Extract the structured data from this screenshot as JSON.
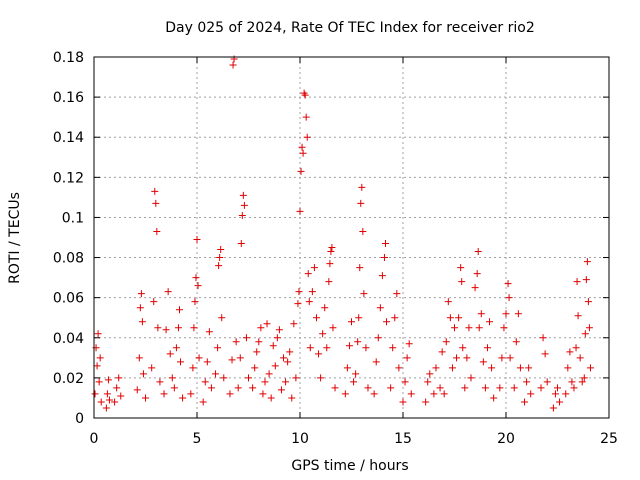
{
  "chart_data": {
    "type": "scatter",
    "title": "Day 025 of 2024, Rate Of TEC Index for receiver rio2",
    "xlabel": "GPS time / hours",
    "ylabel": "ROTI / TECUs",
    "xlim": [
      0,
      25
    ],
    "ylim": [
      0,
      0.18
    ],
    "x_ticks": [
      0,
      5,
      10,
      15,
      20,
      25
    ],
    "x_tick_labels": [
      "0",
      "5",
      "10",
      "15",
      "20",
      "25"
    ],
    "y_ticks": [
      0,
      0.02,
      0.04,
      0.06,
      0.08,
      0.1,
      0.12,
      0.14,
      0.16,
      0.18
    ],
    "y_tick_labels": [
      "0",
      "0.02",
      "0.04",
      "0.06",
      "0.08",
      "0.1",
      "0.12",
      "0.14",
      "0.16",
      "0.18"
    ],
    "grid": true,
    "marker": "+",
    "color": "#e00000",
    "series": [
      {
        "name": "ROTI",
        "points": [
          [
            0.05,
            0.012
          ],
          [
            0.1,
            0.035
          ],
          [
            0.15,
            0.026
          ],
          [
            0.2,
            0.042
          ],
          [
            0.25,
            0.018
          ],
          [
            0.3,
            0.03
          ],
          [
            0.35,
            0.008
          ],
          [
            0.6,
            0.005
          ],
          [
            0.65,
            0.012
          ],
          [
            0.7,
            0.019
          ],
          [
            0.75,
            0.009
          ],
          [
            1.0,
            0.008
          ],
          [
            1.1,
            0.015
          ],
          [
            1.2,
            0.02
          ],
          [
            1.3,
            0.011
          ],
          [
            2.1,
            0.014
          ],
          [
            2.2,
            0.03
          ],
          [
            2.25,
            0.055
          ],
          [
            2.3,
            0.062
          ],
          [
            2.35,
            0.048
          ],
          [
            2.4,
            0.022
          ],
          [
            2.5,
            0.01
          ],
          [
            2.8,
            0.025
          ],
          [
            2.9,
            0.058
          ],
          [
            2.95,
            0.113
          ],
          [
            3.0,
            0.107
          ],
          [
            3.05,
            0.093
          ],
          [
            3.1,
            0.045
          ],
          [
            3.2,
            0.018
          ],
          [
            3.4,
            0.012
          ],
          [
            3.5,
            0.044
          ],
          [
            3.6,
            0.063
          ],
          [
            3.7,
            0.032
          ],
          [
            3.8,
            0.02
          ],
          [
            3.9,
            0.015
          ],
          [
            4.0,
            0.035
          ],
          [
            4.1,
            0.045
          ],
          [
            4.15,
            0.054
          ],
          [
            4.2,
            0.028
          ],
          [
            4.3,
            0.01
          ],
          [
            4.7,
            0.012
          ],
          [
            4.8,
            0.025
          ],
          [
            4.85,
            0.045
          ],
          [
            4.9,
            0.058
          ],
          [
            4.95,
            0.07
          ],
          [
            5.0,
            0.089
          ],
          [
            5.05,
            0.066
          ],
          [
            5.1,
            0.03
          ],
          [
            5.3,
            0.008
          ],
          [
            5.4,
            0.018
          ],
          [
            5.5,
            0.028
          ],
          [
            5.6,
            0.043
          ],
          [
            5.7,
            0.015
          ],
          [
            5.9,
            0.022
          ],
          [
            6.0,
            0.035
          ],
          [
            6.05,
            0.076
          ],
          [
            6.1,
            0.08
          ],
          [
            6.15,
            0.084
          ],
          [
            6.2,
            0.05
          ],
          [
            6.3,
            0.02
          ],
          [
            6.6,
            0.012
          ],
          [
            6.7,
            0.029
          ],
          [
            6.75,
            0.176
          ],
          [
            6.8,
            0.179
          ],
          [
            6.9,
            0.038
          ],
          [
            7.0,
            0.015
          ],
          [
            7.1,
            0.03
          ],
          [
            7.15,
            0.087
          ],
          [
            7.2,
            0.101
          ],
          [
            7.25,
            0.111
          ],
          [
            7.3,
            0.106
          ],
          [
            7.4,
            0.04
          ],
          [
            7.5,
            0.02
          ],
          [
            7.7,
            0.015
          ],
          [
            7.8,
            0.025
          ],
          [
            7.9,
            0.033
          ],
          [
            8.0,
            0.038
          ],
          [
            8.1,
            0.045
          ],
          [
            8.2,
            0.012
          ],
          [
            8.3,
            0.018
          ],
          [
            8.4,
            0.047
          ],
          [
            8.5,
            0.022
          ],
          [
            8.6,
            0.01
          ],
          [
            8.7,
            0.036
          ],
          [
            8.8,
            0.026
          ],
          [
            8.9,
            0.04
          ],
          [
            9.0,
            0.044
          ],
          [
            9.1,
            0.014
          ],
          [
            9.2,
            0.03
          ],
          [
            9.3,
            0.018
          ],
          [
            9.4,
            0.028
          ],
          [
            9.5,
            0.033
          ],
          [
            9.6,
            0.01
          ],
          [
            9.7,
            0.047
          ],
          [
            9.8,
            0.02
          ],
          [
            9.9,
            0.057
          ],
          [
            9.95,
            0.063
          ],
          [
            10.0,
            0.103
          ],
          [
            10.05,
            0.123
          ],
          [
            10.1,
            0.135
          ],
          [
            10.15,
            0.132
          ],
          [
            10.2,
            0.162
          ],
          [
            10.25,
            0.161
          ],
          [
            10.3,
            0.15
          ],
          [
            10.35,
            0.14
          ],
          [
            10.4,
            0.072
          ],
          [
            10.45,
            0.058
          ],
          [
            10.5,
            0.035
          ],
          [
            10.6,
            0.063
          ],
          [
            10.7,
            0.075
          ],
          [
            10.8,
            0.05
          ],
          [
            10.9,
            0.032
          ],
          [
            11.0,
            0.02
          ],
          [
            11.1,
            0.042
          ],
          [
            11.2,
            0.055
          ],
          [
            11.3,
            0.035
          ],
          [
            11.4,
            0.068
          ],
          [
            11.45,
            0.077
          ],
          [
            11.5,
            0.083
          ],
          [
            11.55,
            0.085
          ],
          [
            11.6,
            0.045
          ],
          [
            11.7,
            0.015
          ],
          [
            12.2,
            0.012
          ],
          [
            12.3,
            0.025
          ],
          [
            12.4,
            0.036
          ],
          [
            12.5,
            0.048
          ],
          [
            12.6,
            0.018
          ],
          [
            12.7,
            0.022
          ],
          [
            12.8,
            0.038
          ],
          [
            12.85,
            0.05
          ],
          [
            12.9,
            0.075
          ],
          [
            12.95,
            0.107
          ],
          [
            13.0,
            0.115
          ],
          [
            13.05,
            0.093
          ],
          [
            13.1,
            0.062
          ],
          [
            13.2,
            0.035
          ],
          [
            13.3,
            0.015
          ],
          [
            13.6,
            0.012
          ],
          [
            13.7,
            0.028
          ],
          [
            13.8,
            0.04
          ],
          [
            13.9,
            0.055
          ],
          [
            14.0,
            0.071
          ],
          [
            14.1,
            0.08
          ],
          [
            14.15,
            0.087
          ],
          [
            14.2,
            0.048
          ],
          [
            14.4,
            0.015
          ],
          [
            14.5,
            0.035
          ],
          [
            14.6,
            0.05
          ],
          [
            14.7,
            0.062
          ],
          [
            14.8,
            0.025
          ],
          [
            15.0,
            0.008
          ],
          [
            15.1,
            0.018
          ],
          [
            15.2,
            0.03
          ],
          [
            15.3,
            0.037
          ],
          [
            15.4,
            0.012
          ],
          [
            16.1,
            0.008
          ],
          [
            16.2,
            0.018
          ],
          [
            16.3,
            0.022
          ],
          [
            16.5,
            0.012
          ],
          [
            16.6,
            0.025
          ],
          [
            16.8,
            0.015
          ],
          [
            16.9,
            0.033
          ],
          [
            17.0,
            0.012
          ],
          [
            17.1,
            0.038
          ],
          [
            17.2,
            0.058
          ],
          [
            17.3,
            0.05
          ],
          [
            17.4,
            0.025
          ],
          [
            17.5,
            0.045
          ],
          [
            17.6,
            0.03
          ],
          [
            17.7,
            0.05
          ],
          [
            17.8,
            0.075
          ],
          [
            17.85,
            0.068
          ],
          [
            17.9,
            0.035
          ],
          [
            18.0,
            0.015
          ],
          [
            18.1,
            0.03
          ],
          [
            18.2,
            0.045
          ],
          [
            18.3,
            0.02
          ],
          [
            18.5,
            0.065
          ],
          [
            18.6,
            0.072
          ],
          [
            18.65,
            0.083
          ],
          [
            18.7,
            0.045
          ],
          [
            18.8,
            0.052
          ],
          [
            18.9,
            0.028
          ],
          [
            19.0,
            0.015
          ],
          [
            19.1,
            0.035
          ],
          [
            19.2,
            0.048
          ],
          [
            19.3,
            0.025
          ],
          [
            19.4,
            0.01
          ],
          [
            19.7,
            0.015
          ],
          [
            19.8,
            0.03
          ],
          [
            19.9,
            0.045
          ],
          [
            20.0,
            0.052
          ],
          [
            20.1,
            0.067
          ],
          [
            20.15,
            0.06
          ],
          [
            20.2,
            0.03
          ],
          [
            20.4,
            0.015
          ],
          [
            20.5,
            0.038
          ],
          [
            20.6,
            0.052
          ],
          [
            20.7,
            0.025
          ],
          [
            20.9,
            0.008
          ],
          [
            21.0,
            0.018
          ],
          [
            21.1,
            0.025
          ],
          [
            21.2,
            0.012
          ],
          [
            21.7,
            0.015
          ],
          [
            21.8,
            0.04
          ],
          [
            21.9,
            0.032
          ],
          [
            22.0,
            0.018
          ],
          [
            22.3,
            0.005
          ],
          [
            22.4,
            0.012
          ],
          [
            22.5,
            0.015
          ],
          [
            22.6,
            0.008
          ],
          [
            22.9,
            0.012
          ],
          [
            23.0,
            0.025
          ],
          [
            23.1,
            0.033
          ],
          [
            23.2,
            0.018
          ],
          [
            23.3,
            0.015
          ],
          [
            23.4,
            0.035
          ],
          [
            23.45,
            0.068
          ],
          [
            23.5,
            0.051
          ],
          [
            23.6,
            0.03
          ],
          [
            23.7,
            0.018
          ],
          [
            23.8,
            0.02
          ],
          [
            23.85,
            0.042
          ],
          [
            23.9,
            0.069
          ],
          [
            23.95,
            0.078
          ],
          [
            24.0,
            0.058
          ],
          [
            24.05,
            0.045
          ],
          [
            24.1,
            0.025
          ]
        ]
      }
    ]
  }
}
